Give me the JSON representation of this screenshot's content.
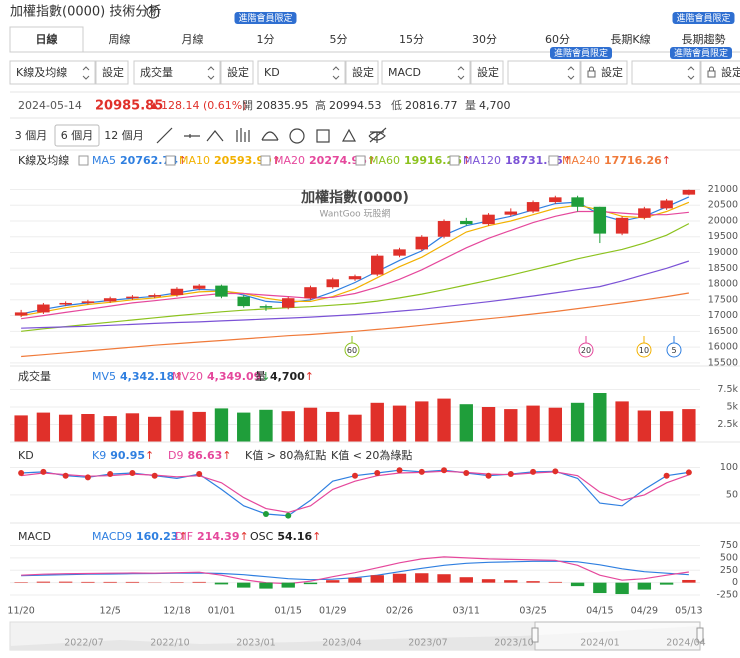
{
  "header": {
    "title": "加權指數(0000) 技術分析",
    "help": "?"
  },
  "tabs": [
    "日線",
    "周線",
    "月線",
    "1分",
    "5分",
    "15分",
    "30分",
    "60分",
    "長期K線",
    "長期趨勢"
  ],
  "badge": "進階會員限定",
  "selectors": [
    {
      "label": "K線及均線",
      "button": "設定"
    },
    {
      "label": "成交量",
      "button": "設定"
    },
    {
      "label": "KD",
      "button": "設定"
    },
    {
      "label": "MACD",
      "button": "設定"
    },
    {
      "button": "設定"
    },
    {
      "button": "設定"
    }
  ],
  "quote": {
    "date": "2024-05-14",
    "price": "20985.85",
    "change": "128.14 (0.61%)",
    "stats": [
      {
        "label": "開",
        "value": "20835.95"
      },
      {
        "label": "高",
        "value": "20994.53"
      },
      {
        "label": "低",
        "value": "20816.77"
      },
      {
        "label": "量",
        "value": "4,700"
      }
    ]
  },
  "ranges": [
    "3 個月",
    "6 個月",
    "12 個月"
  ],
  "chart_data": [
    {
      "type": "candlestick",
      "title": "K線及均線",
      "watermark": "加權指數(0000)",
      "subtitle": "WantGoo 玩股網",
      "x": [
        "11/20",
        null,
        null,
        null,
        "12/5",
        null,
        null,
        "12/18",
        null,
        "01/01",
        null,
        null,
        "01/15",
        null,
        "01/29",
        null,
        null,
        "02/26",
        null,
        null,
        "03/11",
        null,
        null,
        "03/25",
        null,
        null,
        "04/15",
        null,
        "04/29",
        null,
        "05/13"
      ],
      "open": [
        17000,
        17100,
        17350,
        17400,
        17450,
        17550,
        17600,
        17650,
        17850,
        17950,
        17600,
        17300,
        17250,
        17550,
        17900,
        18150,
        18300,
        18900,
        19100,
        19500,
        20000,
        19900,
        20200,
        20300,
        20600,
        20750,
        20450,
        19600,
        20100,
        20400,
        20835.95
      ],
      "high": [
        17180,
        17400,
        17450,
        17500,
        17600,
        17650,
        17700,
        17900,
        18000,
        17980,
        17650,
        17350,
        17600,
        17950,
        18200,
        18300,
        18950,
        19150,
        19550,
        20050,
        20100,
        20250,
        20400,
        20650,
        20800,
        20800,
        20450,
        20150,
        20450,
        20700,
        20994.53
      ],
      "low": [
        16950,
        17050,
        17300,
        17350,
        17400,
        17500,
        17550,
        17600,
        17800,
        17550,
        17250,
        17150,
        17200,
        17500,
        17850,
        18100,
        18250,
        18850,
        19050,
        19450,
        19850,
        19850,
        20150,
        20250,
        20550,
        20300,
        19300,
        19550,
        20050,
        20350,
        20816.77
      ],
      "close": [
        17100,
        17350,
        17400,
        17450,
        17550,
        17600,
        17650,
        17850,
        17950,
        17600,
        17300,
        17250,
        17550,
        17900,
        18150,
        18250,
        18900,
        19100,
        19500,
        20000,
        19900,
        20200,
        20300,
        20600,
        20750,
        20450,
        19600,
        20100,
        20400,
        20650,
        20985.85
      ],
      "up_color": "#e0302a",
      "down_color": "#1f9e3a",
      "series": [
        {
          "name": "MA5",
          "color": "#2f7fe0",
          "arrow": "↑",
          "values": [
            17050,
            17200,
            17320,
            17400,
            17480,
            17550,
            17610,
            17720,
            17830,
            17800,
            17650,
            17450,
            17400,
            17500,
            17750,
            18050,
            18400,
            18750,
            19050,
            19550,
            19850,
            20000,
            20150,
            20350,
            20550,
            20600,
            20200,
            20000,
            20150,
            20450,
            20762.74
          ]
        },
        {
          "name": "MA10",
          "color": "#f2b100",
          "arrow": "↑",
          "values": [
            17000,
            17120,
            17250,
            17350,
            17420,
            17500,
            17560,
            17650,
            17750,
            17780,
            17700,
            17550,
            17450,
            17450,
            17600,
            17850,
            18200,
            18550,
            18850,
            19250,
            19650,
            19850,
            20000,
            20200,
            20400,
            20500,
            20350,
            20150,
            20100,
            20300,
            20593.99
          ]
        },
        {
          "name": "MA20",
          "color": "#e5489c",
          "arrow": "↑",
          "values": [
            16900,
            17000,
            17100,
            17200,
            17300,
            17400,
            17470,
            17550,
            17630,
            17700,
            17700,
            17650,
            17600,
            17550,
            17580,
            17700,
            17900,
            18150,
            18450,
            18800,
            19150,
            19450,
            19700,
            19950,
            20150,
            20300,
            20300,
            20250,
            20200,
            20200,
            20274.96
          ]
        },
        {
          "name": "MA60",
          "color": "#8cc21e",
          "arrow": "↑",
          "values": [
            16500,
            16580,
            16650,
            16720,
            16790,
            16860,
            16930,
            17000,
            17060,
            17120,
            17170,
            17210,
            17250,
            17280,
            17330,
            17380,
            17460,
            17560,
            17680,
            17820,
            17970,
            18120,
            18280,
            18450,
            18620,
            18800,
            18950,
            19100,
            19300,
            19550,
            19916.26
          ]
        },
        {
          "name": "MA120",
          "color": "#7b52d6",
          "arrow": "↑",
          "values": [
            16600,
            16620,
            16640,
            16660,
            16690,
            16720,
            16750,
            16780,
            16800,
            16830,
            16860,
            16890,
            16920,
            16950,
            16990,
            17030,
            17080,
            17140,
            17200,
            17280,
            17360,
            17440,
            17530,
            17620,
            17720,
            17820,
            17920,
            18100,
            18300,
            18500,
            18731.85
          ]
        },
        {
          "name": "MA240",
          "color": "#f07a3a",
          "arrow": "↑",
          "values": [
            15700,
            15760,
            15820,
            15880,
            15940,
            16000,
            16060,
            16110,
            16160,
            16210,
            16260,
            16310,
            16360,
            16400,
            16450,
            16500,
            16560,
            16620,
            16690,
            16760,
            16830,
            16900,
            16970,
            17050,
            17130,
            17220,
            17310,
            17400,
            17500,
            17600,
            17716.26
          ]
        }
      ],
      "markers": [
        {
          "label": "60",
          "color": "#8cc21e"
        },
        {
          "label": "20",
          "color": "#e5489c"
        },
        {
          "label": "10",
          "color": "#f2b100"
        },
        {
          "label": "5",
          "color": "#2f7fe0"
        }
      ],
      "ylim": [
        15400,
        21300
      ],
      "yticks": [
        15500,
        16000,
        16500,
        17000,
        17500,
        18000,
        18500,
        19000,
        19500,
        20000,
        20500,
        21000
      ],
      "grid": true
    },
    {
      "type": "bar",
      "title": "成交量",
      "values": [
        3800,
        4200,
        3900,
        4000,
        3700,
        4100,
        3600,
        4500,
        4300,
        4800,
        4200,
        4600,
        4400,
        4900,
        4300,
        3900,
        5600,
        5200,
        5800,
        6200,
        5400,
        5000,
        4700,
        5200,
        4900,
        5600,
        7000,
        5800,
        4500,
        4400,
        4700
      ],
      "legend": [
        {
          "name": "MV5",
          "value": "4,342.18",
          "arrow": "↑",
          "color": "#2f7fe0"
        },
        {
          "name": "MV20",
          "value": "4,349.09",
          "arrow": "↓",
          "color": "#e5489c"
        },
        {
          "name": "量",
          "value": "4,700",
          "arrow": "↑",
          "color": "#222222"
        }
      ],
      "ylim": [
        0,
        8000
      ],
      "yticks": [
        {
          "value": 2500,
          "label": "2.5k"
        },
        {
          "value": 5000,
          "label": "5k"
        },
        {
          "value": 7500,
          "label": "7.5k"
        }
      ],
      "grid": true
    },
    {
      "type": "line",
      "title": "KD",
      "series": [
        {
          "name": "K9",
          "color": "#2f7fe0",
          "arrow": "↑",
          "values": [
            90,
            92,
            85,
            82,
            88,
            90,
            85,
            80,
            88,
            60,
            30,
            15,
            12,
            40,
            75,
            85,
            90,
            95,
            92,
            95,
            90,
            85,
            88,
            92,
            93,
            80,
            35,
            30,
            60,
            85,
            90.95
          ]
        },
        {
          "name": "D9",
          "color": "#e5489c",
          "arrow": "↑",
          "values": [
            85,
            90,
            87,
            84,
            85,
            88,
            86,
            83,
            85,
            72,
            45,
            25,
            18,
            30,
            60,
            75,
            85,
            90,
            91,
            93,
            91,
            88,
            87,
            90,
            92,
            85,
            55,
            40,
            50,
            72,
            86.63
          ]
        }
      ],
      "notes": [
        "K值 > 80為紅點",
        "K值 < 20為綠點"
      ],
      "overbought": 80,
      "oversold": 20,
      "ylim": [
        -5,
        110
      ],
      "yticks": [
        50,
        100
      ],
      "grid": true
    },
    {
      "type": "macd",
      "title": "MACD",
      "series": [
        {
          "name": "MACD9",
          "color": "#2f7fe0",
          "arrow": "↑",
          "values": [
            140,
            150,
            160,
            170,
            175,
            180,
            185,
            190,
            195,
            185,
            160,
            120,
            80,
            60,
            70,
            100,
            150,
            220,
            290,
            350,
            390,
            410,
            420,
            430,
            435,
            420,
            360,
            280,
            220,
            190,
            160.23
          ]
        },
        {
          "name": "DIF",
          "color": "#e5489c",
          "arrow": "↑",
          "values": [
            150,
            170,
            180,
            185,
            190,
            195,
            190,
            200,
            210,
            150,
            60,
            0,
            -20,
            30,
            120,
            200,
            300,
            400,
            480,
            520,
            500,
            480,
            470,
            460,
            450,
            350,
            150,
            50,
            80,
            150,
            214.39
          ]
        },
        {
          "name": "OSC",
          "color": "#222222",
          "arrow": "↑",
          "bars": true,
          "values": [
            10,
            20,
            20,
            15,
            15,
            15,
            5,
            10,
            15,
            -35,
            -100,
            -120,
            -100,
            -30,
            50,
            100,
            150,
            180,
            190,
            170,
            110,
            70,
            50,
            30,
            15,
            -70,
            -210,
            -230,
            -140,
            -40,
            54.16
          ]
        }
      ],
      "ylim": [
        -350,
        800
      ],
      "yticks": [
        -250,
        0,
        250,
        500,
        750
      ],
      "grid": true
    }
  ],
  "navigator": {
    "labels": [
      "2022/07",
      "2022/10",
      "2023/01",
      "2023/04",
      "2023/07",
      "2023/10",
      "2024/01",
      "2024/04"
    ]
  }
}
